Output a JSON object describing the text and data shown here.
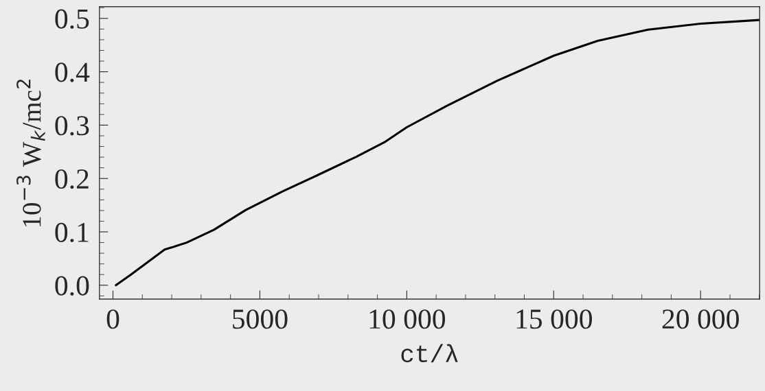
{
  "chart_data": {
    "type": "line",
    "xlabel": "ct/λ",
    "ylabel": "10$^{−3}$ W$_{k}$/mc$^{2}$",
    "xlim": [
      -460,
      22010
    ],
    "ylim": [
      -0.026,
      0.522
    ],
    "xticks": [
      0,
      5000,
      {
        "value": 10000,
        "label": "10 000"
      },
      {
        "value": 15000,
        "label": "15 000"
      },
      {
        "value": 20000,
        "label": "20 000"
      }
    ],
    "yticks": [
      {
        "value": 0,
        "label": "0.0"
      },
      0.1,
      0.2,
      0.3,
      0.4,
      0.5
    ],
    "grid": false,
    "legend": false,
    "series": [
      {
        "color": "#000000",
        "x": [
          100,
          590,
          1760,
          2010,
          2510,
          3440,
          4520,
          5780,
          7030,
          8290,
          9270,
          10000,
          11360,
          13070,
          15000,
          16500,
          18210,
          20000,
          22010
        ],
        "values": [
          0.0,
          0.019,
          0.067,
          0.071,
          0.08,
          0.104,
          0.141,
          0.176,
          0.208,
          0.241,
          0.269,
          0.296,
          0.336,
          0.383,
          0.43,
          0.458,
          0.479,
          0.49,
          0.497
        ]
      }
    ]
  }
}
